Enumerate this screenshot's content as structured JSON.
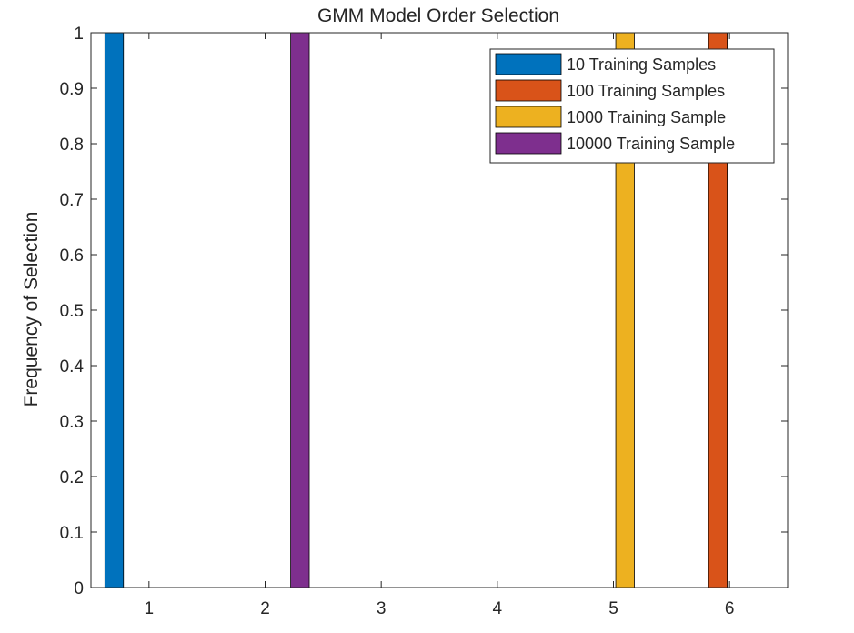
{
  "chart_data": {
    "type": "bar",
    "title": "GMM Model Order Selection",
    "xlabel": "",
    "ylabel": "Frequency of Selection",
    "categories": [
      "1",
      "2",
      "3",
      "4",
      "5",
      "6"
    ],
    "xlim": [
      0.5,
      6.5
    ],
    "ylim": [
      0,
      1
    ],
    "yticks": [
      "0",
      "0.1",
      "0.2",
      "0.3",
      "0.4",
      "0.5",
      "0.6",
      "0.7",
      "0.8",
      "0.9",
      "1"
    ],
    "grid": false,
    "legend_position": "top-right",
    "series": [
      {
        "name": "10 Training Samples",
        "color": "#0072BD",
        "values": [
          1,
          0,
          0,
          0,
          0,
          0
        ]
      },
      {
        "name": "100 Training Samples",
        "color": "#D95319",
        "values": [
          0,
          0,
          0,
          0,
          0,
          1
        ]
      },
      {
        "name": "1000 Training Sample",
        "color": "#EDB120",
        "values": [
          0,
          0,
          0,
          0,
          1,
          0
        ]
      },
      {
        "name": "10000 Training Sample",
        "color": "#7E2F8E",
        "values": [
          0,
          1,
          0,
          0,
          0,
          0
        ]
      }
    ]
  }
}
